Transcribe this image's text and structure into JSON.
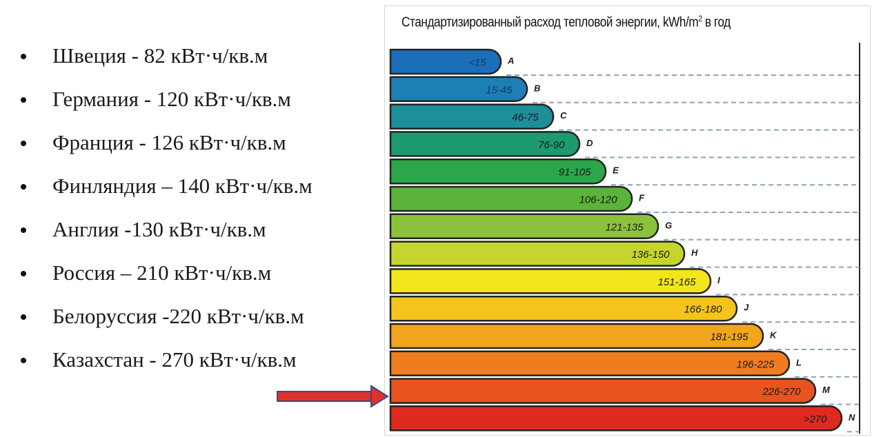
{
  "bullets": [
    "Швеция - 82 кВт·ч/кв.м",
    "Германия - 120 кВт·ч/кв.м",
    "Франция - 126 кВт·ч/кв.м",
    "Финляндия – 140 кВт·ч/кв.м",
    "Англия -130 кВт·ч/кв.м",
    "Россия – 210  кВт·ч/кв.м",
    "Белоруссия -220 кВт·ч/кв.м",
    "Казахстан -  270 кВт·ч/кв.м"
  ],
  "chart_data": {
    "type": "bar",
    "title_main": "Стандартизированный расход тепловой энергии, kWh/m",
    "title_sup": "2",
    "title_tail": " в год",
    "categories": [
      "A",
      "B",
      "C",
      "D",
      "E",
      "F",
      "G",
      "H",
      "I",
      "J",
      "K",
      "L",
      "M",
      "N"
    ],
    "ranges": [
      "<15",
      "15-45",
      "46-75",
      "76-90",
      "91-105",
      "106-120",
      "121-135",
      "136-150",
      "151-165",
      "166-180",
      "181-195",
      "196-225",
      "226-270",
      ">270"
    ],
    "colors": [
      "#1a6fb8",
      "#1d7fb3",
      "#1c8f9a",
      "#1d9a6e",
      "#2ba64a",
      "#5bb33a",
      "#8cc23b",
      "#c6d52e",
      "#f2e51b",
      "#f4c41a",
      "#f2a41c",
      "#ee7d1f",
      "#e8531f",
      "#e02a20"
    ],
    "highlighted": "M"
  }
}
